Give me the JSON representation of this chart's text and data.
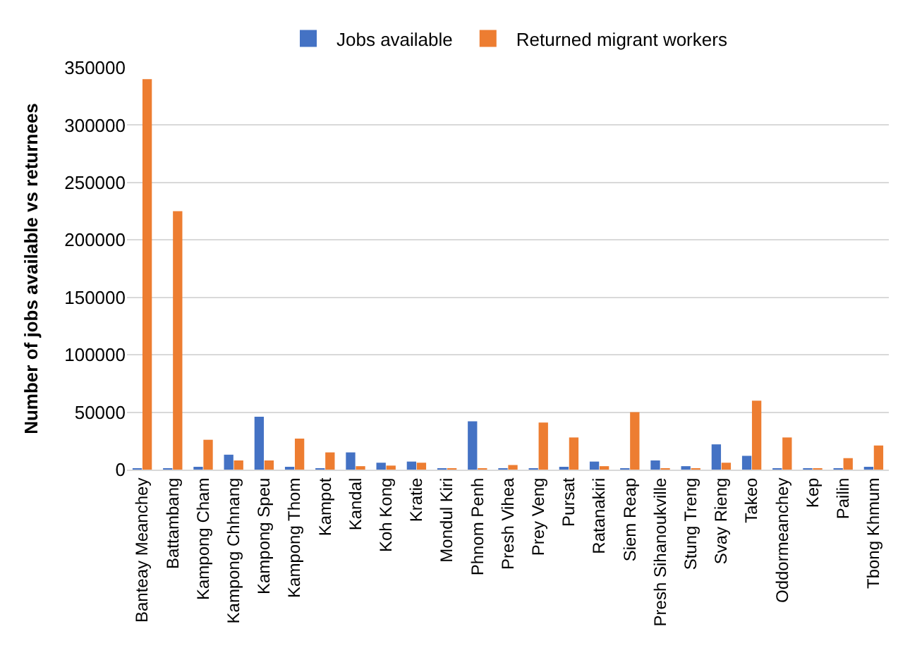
{
  "chart_data": {
    "type": "bar",
    "ylabel": "Number of jobs available vs returnees",
    "categories": [
      "Banteay Meanchey",
      "Battambang",
      "Kampong Cham",
      "Kampong Chhnang",
      "Kampong Speu",
      "Kampong Thom",
      "Kampot",
      "Kandal",
      "Koh Kong",
      "Kratie",
      "Mondul Kiri",
      "Phnom Penh",
      "Presh Vihea",
      "Prey Veng",
      "Pursat",
      "Ratanakiri",
      "Siem Reap",
      "Presh Sihanoukville",
      "Stung Treng",
      "Svay Rieng",
      "Takeo",
      "Oddormeanchey",
      "Kep",
      "Pailin",
      "Tbong Khmum"
    ],
    "series": [
      {
        "name": "Jobs available",
        "color": "#4472c4",
        "values": [
          1000,
          500,
          2000,
          13000,
          46000,
          2000,
          1000,
          15000,
          6000,
          7000,
          500,
          42000,
          1000,
          1000,
          2000,
          7000,
          1000,
          8000,
          3000,
          22000,
          12000,
          1000,
          500,
          1000,
          2000
        ]
      },
      {
        "name": "Returned migrant workers",
        "color": "#ed7d31",
        "values": [
          340000,
          225000,
          26000,
          8000,
          8000,
          27000,
          15000,
          3000,
          3500,
          6000,
          1000,
          300,
          4000,
          41000,
          28000,
          3000,
          50000,
          1000,
          1000,
          6000,
          60000,
          28000,
          1000,
          10000,
          21000
        ]
      }
    ],
    "ylim": [
      0,
      350000
    ],
    "yticks": [
      0,
      50000,
      100000,
      150000,
      200000,
      250000,
      300000,
      350000
    ],
    "grid": "y",
    "legend": "top"
  }
}
